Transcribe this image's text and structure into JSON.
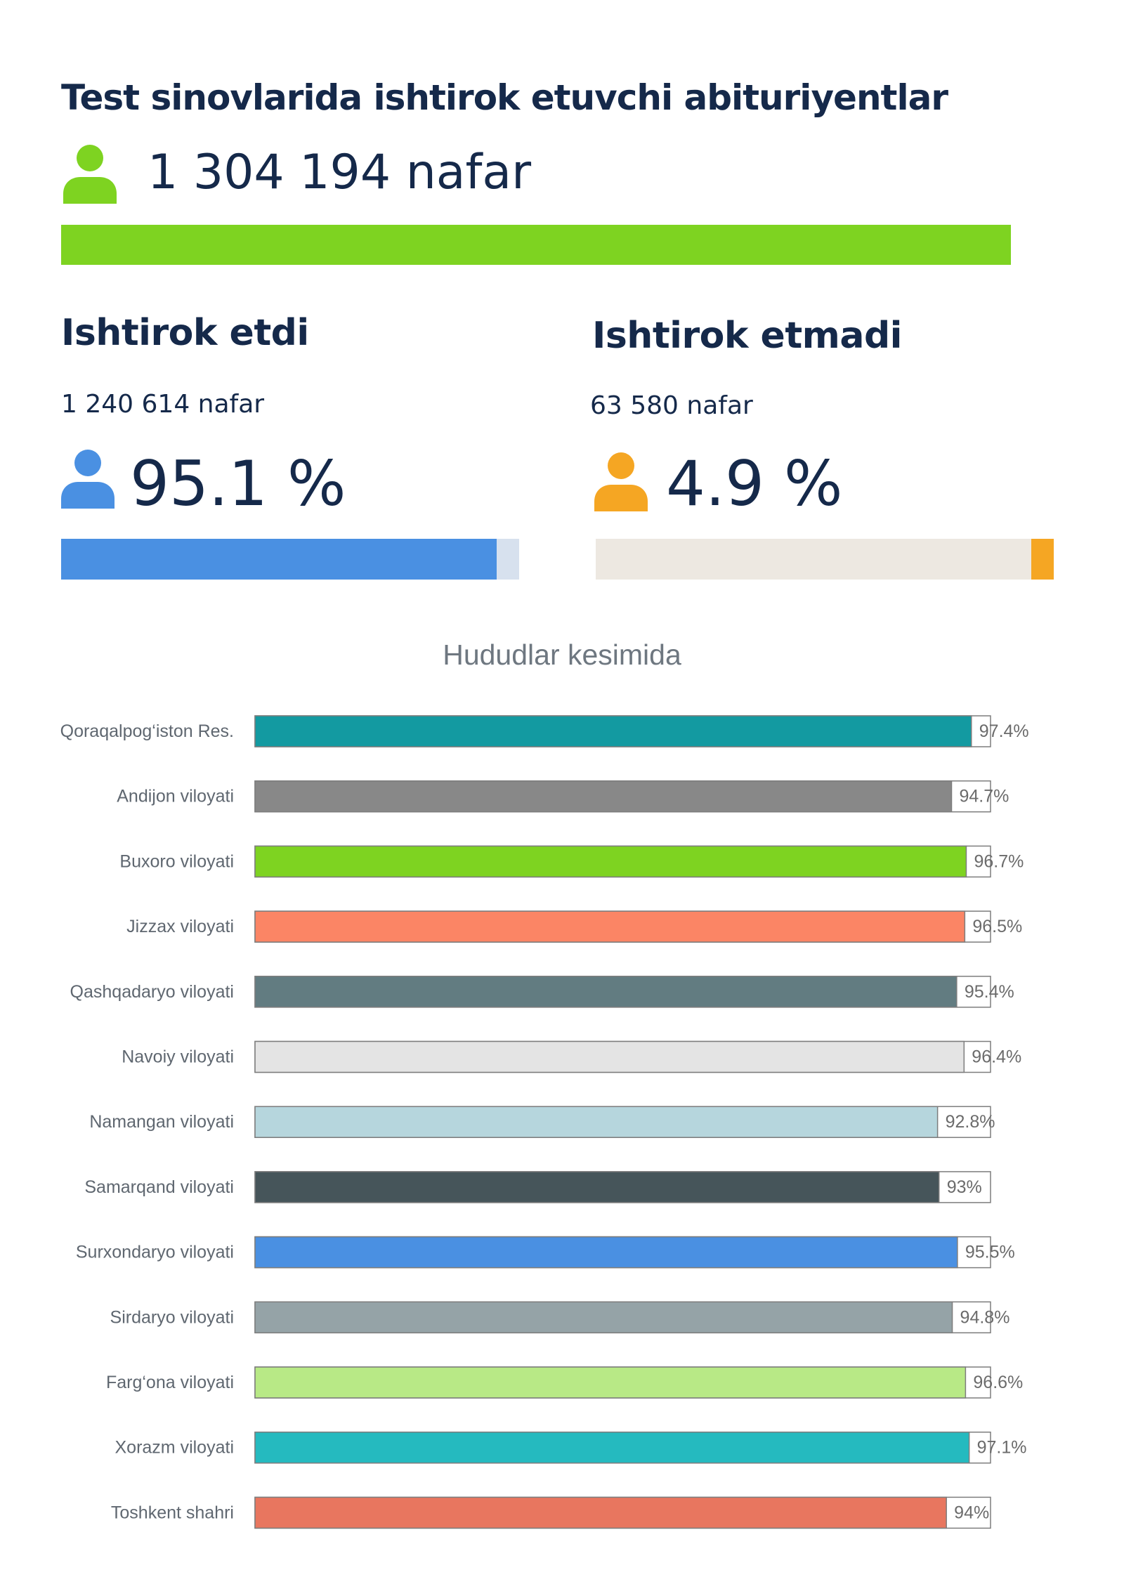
{
  "header": {
    "title": "Test sinovlarida ishtirok etuvchi abituriyentlar",
    "total": "1 304 194 nafar",
    "icon": "person-icon",
    "color": "#7ed321"
  },
  "participated": {
    "title": "Ishtirok etdi",
    "count": "1 240 614 nafar",
    "percent_label": "95.1 %",
    "percent": 95.1,
    "icon": "person-icon",
    "color": "#4a90e2",
    "track_color": "#d7e1ee"
  },
  "not_participated": {
    "title": "Ishtirok etmadi",
    "count": "63 580 nafar",
    "percent_label": "4.9 %",
    "percent": 4.9,
    "icon": "person-icon",
    "color": "#f5a623",
    "track_color": "#ede8e1"
  },
  "chart_data": {
    "type": "bar",
    "orientation": "horizontal",
    "title": "Hududlar kesimida",
    "categories": [
      "Qoraqalpog‘iston Res.",
      "Andijon viloyati",
      "Buxoro viloyati",
      "Jizzax viloyati",
      "Qashqadaryo viloyati",
      "Navoiy viloyati",
      "Namangan viloyati",
      "Samarqand viloyati",
      "Surxondaryo viloyati",
      "Sirdaryo viloyati",
      "Farg‘ona viloyati",
      "Xorazm viloyati",
      "Toshkent shahri"
    ],
    "values": [
      97.4,
      94.7,
      96.7,
      96.5,
      95.4,
      96.4,
      92.8,
      93,
      95.5,
      94.8,
      96.6,
      97.1,
      94
    ],
    "value_labels": [
      "97.4%",
      "94.7%",
      "96.7%",
      "96.5%",
      "95.4%",
      "96.4%",
      "92.8%",
      "93%",
      "95.5%",
      "94.8%",
      "96.6%",
      "97.1%",
      "94%"
    ],
    "colors": [
      "#139aa1",
      "#888888",
      "#7ed321",
      "#fb8565",
      "#627c81",
      "#e4e4e4",
      "#b6d6dd",
      "#46555a",
      "#4a90e2",
      "#95a3a7",
      "#b8e986",
      "#25babf",
      "#e8765f"
    ],
    "xlim": [
      0,
      100
    ],
    "grid": false
  }
}
